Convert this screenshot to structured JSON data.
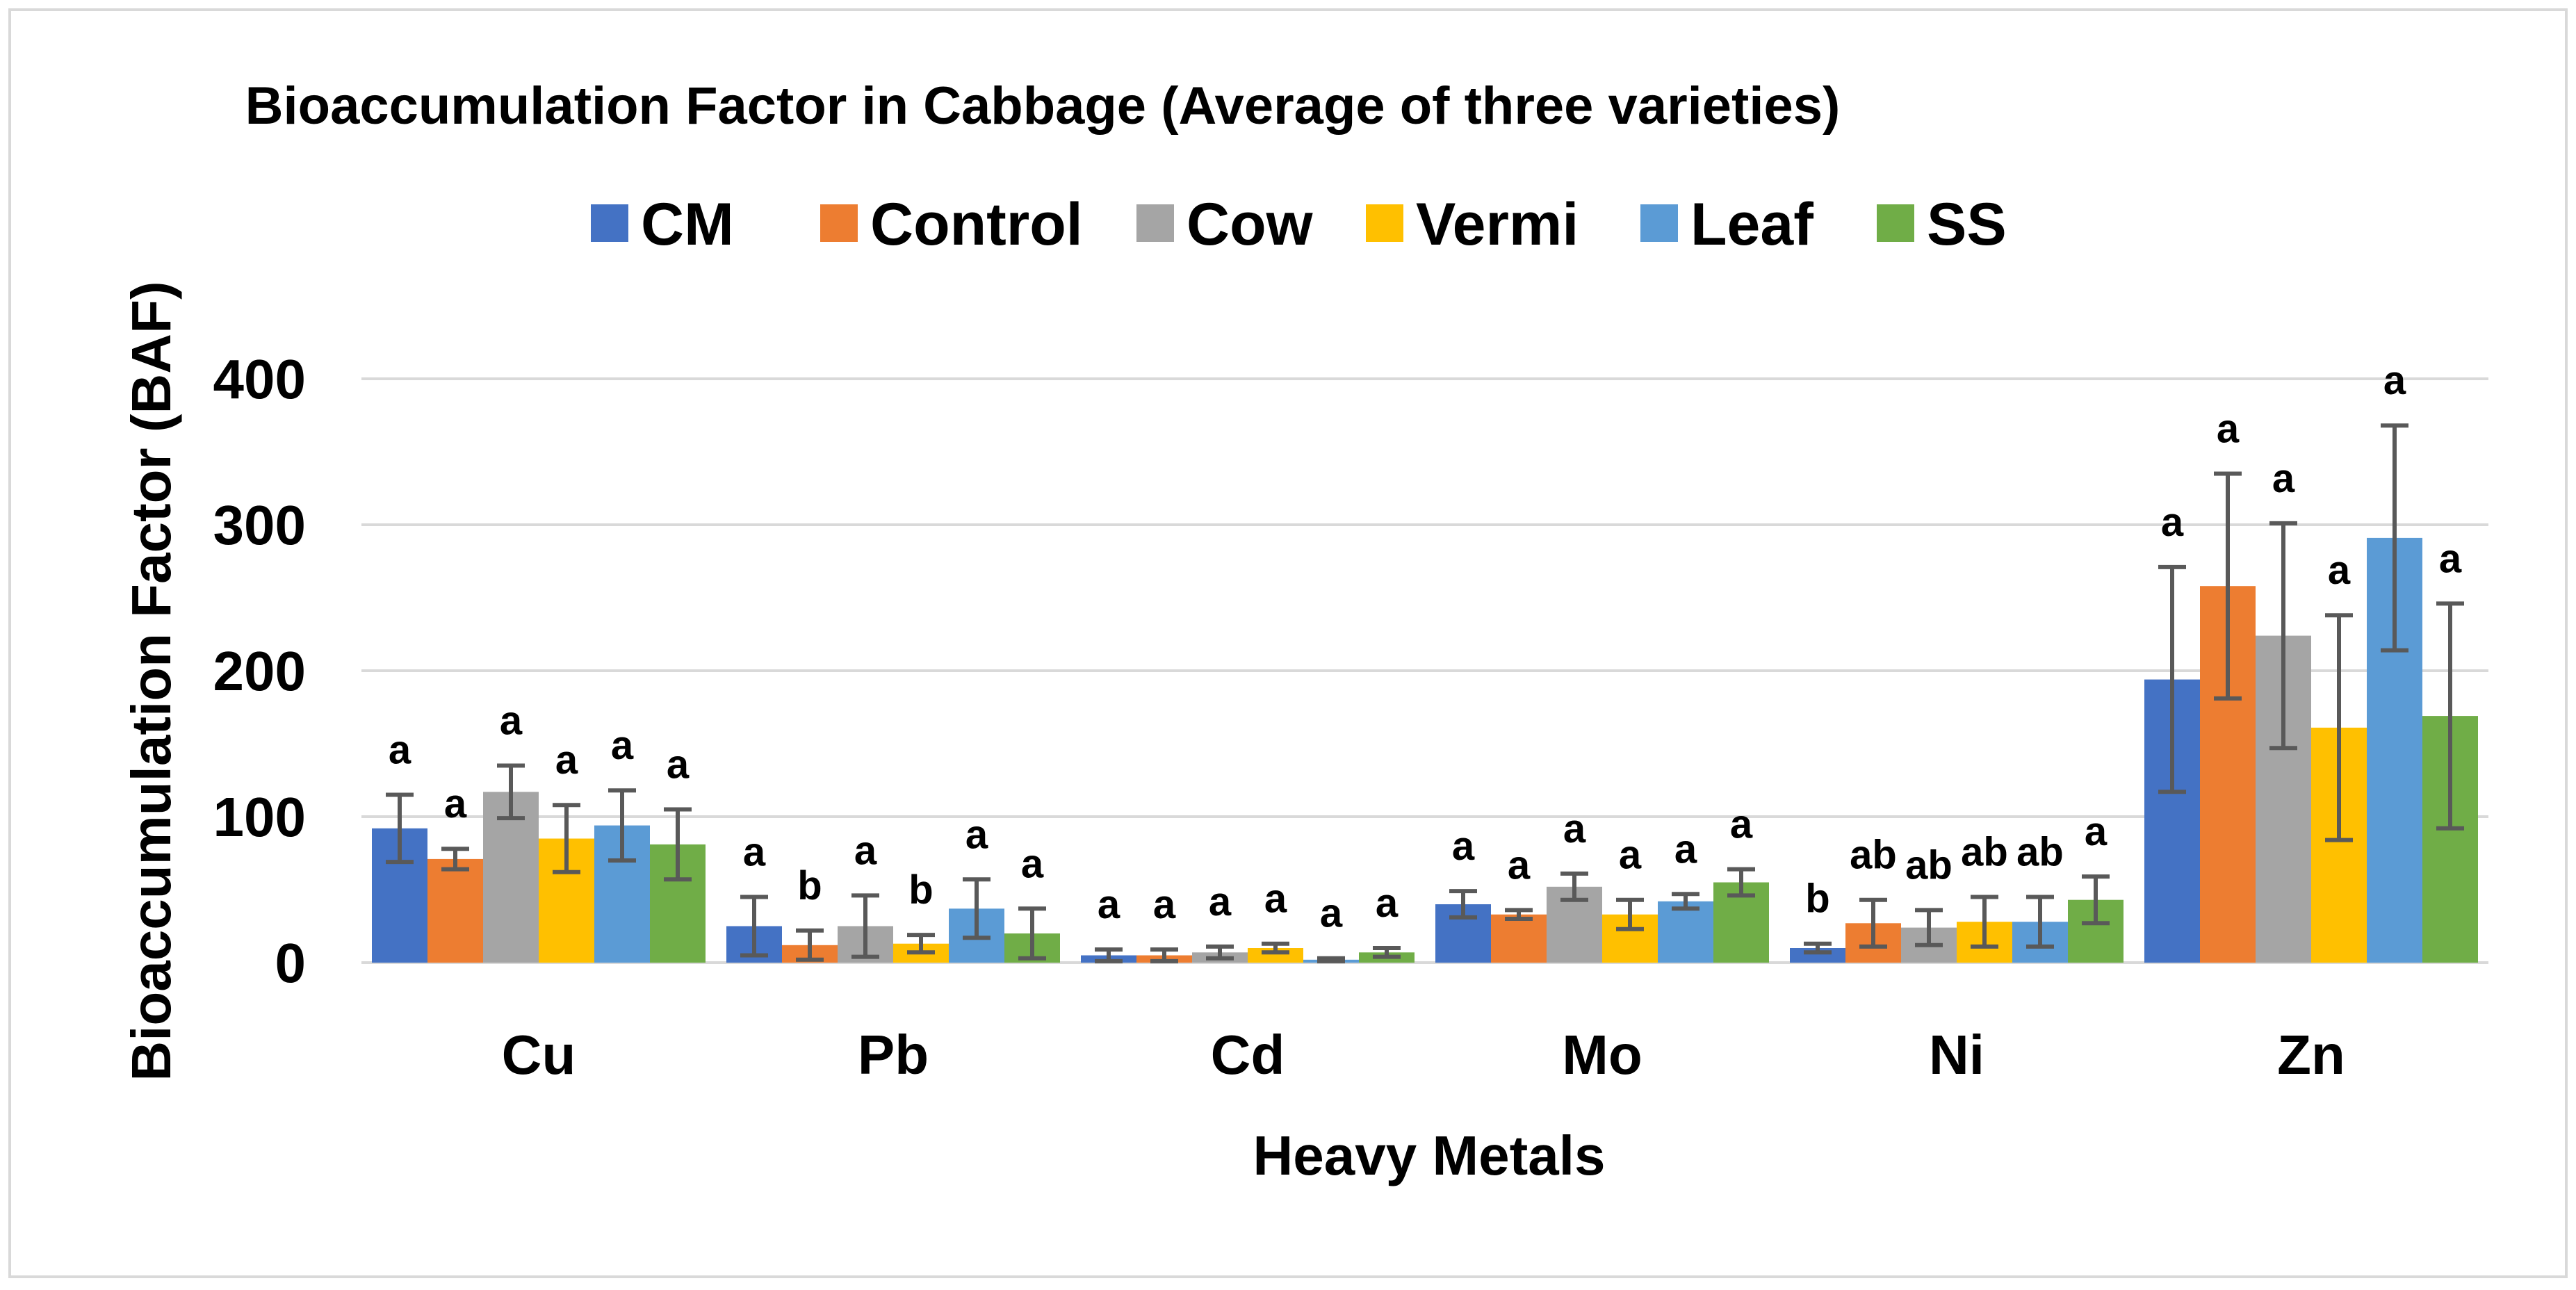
{
  "chart_data": {
    "type": "bar",
    "title": "Bioaccumulation Factor in  Cabbage (Average of three varieties)",
    "xlabel": "Heavy Metals",
    "ylabel": "Bioaccumulation Factor (BAF)",
    "ylim": [
      0,
      400
    ],
    "yticks": [
      "0",
      "100",
      "200",
      "300",
      "400"
    ],
    "grid": true,
    "legend_position": "top",
    "categories": [
      "Cu",
      "Pb",
      "Cd",
      "Mo",
      "Ni",
      "Zn"
    ],
    "series": [
      {
        "name": "CM",
        "color": "#4472C4",
        "values": [
          92,
          25,
          5,
          40,
          10,
          194
        ],
        "errors": [
          23,
          20,
          4,
          9,
          3,
          77
        ],
        "letters": [
          "a",
          "a",
          "a",
          "a",
          "b",
          "a"
        ]
      },
      {
        "name": "Control",
        "color": "#ED7D31",
        "values": [
          71,
          12,
          5,
          33,
          27,
          258
        ],
        "errors": [
          7,
          10,
          4,
          3,
          16,
          77
        ],
        "letters": [
          "a",
          "b",
          "a",
          "a",
          "ab",
          "a"
        ]
      },
      {
        "name": "Cow",
        "color": "#A5A5A5",
        "values": [
          117,
          25,
          7,
          52,
          24,
          224
        ],
        "errors": [
          18,
          21,
          4,
          9,
          12,
          77
        ],
        "letters": [
          "a",
          "a",
          "a",
          "a",
          "ab",
          "a"
        ]
      },
      {
        "name": "Vermi",
        "color": "#FFC000",
        "values": [
          85,
          13,
          10,
          33,
          28,
          161
        ],
        "errors": [
          23,
          6,
          3,
          10,
          17,
          77
        ],
        "letters": [
          "a",
          "b",
          "a",
          "a",
          "ab",
          "a"
        ]
      },
      {
        "name": "Leaf",
        "color": "#5B9BD5",
        "values": [
          94,
          37,
          2,
          42,
          28,
          291
        ],
        "errors": [
          24,
          20,
          1,
          5,
          17,
          77
        ],
        "letters": [
          "a",
          "a",
          "a",
          "a",
          "ab",
          "a"
        ]
      },
      {
        "name": "SS",
        "color": "#70AD47",
        "values": [
          81,
          20,
          7,
          55,
          43,
          169
        ],
        "errors": [
          24,
          17,
          3,
          9,
          16,
          77
        ],
        "letters": [
          "a",
          "a",
          "a",
          "a",
          "a",
          "a"
        ]
      }
    ]
  }
}
